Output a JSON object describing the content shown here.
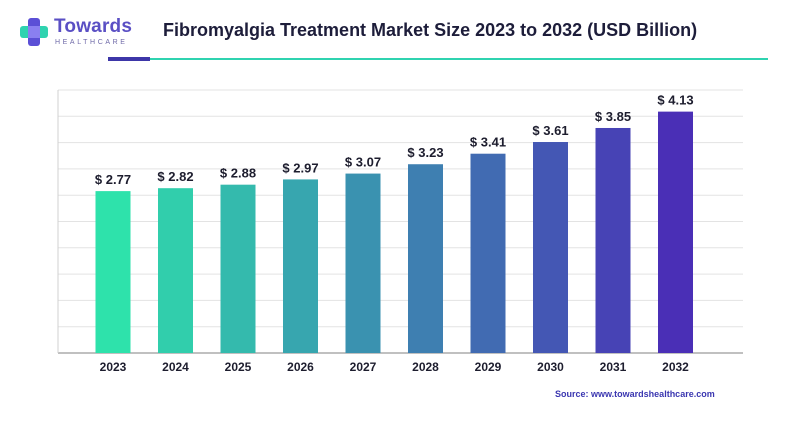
{
  "brand": {
    "name": "Towards",
    "tagline": "HEALTHCARE"
  },
  "header": {
    "title": "Fibromyalgia Treatment Market Size 2023 to 2032 (USD Billion)"
  },
  "source": "Source: www.towardshealthcare.com",
  "colors": {
    "bar_start": "#2ee2ab",
    "bar_end": "#4a2fb6",
    "accent": "#3d36a8",
    "rule": "#2fd3b0"
  },
  "chart_data": {
    "type": "bar",
    "title": "Fibromyalgia Treatment Market Size 2023 to 2032 (USD Billion)",
    "xlabel": "",
    "ylabel": "",
    "categories": [
      "2023",
      "2024",
      "2025",
      "2026",
      "2027",
      "2028",
      "2029",
      "2030",
      "2031",
      "2032"
    ],
    "values": [
      2.77,
      2.82,
      2.88,
      2.97,
      3.07,
      3.23,
      3.41,
      3.61,
      3.85,
      4.13
    ],
    "data_labels": [
      "$ 2.77",
      "$ 2.82",
      "$ 2.88",
      "$ 2.97",
      "$ 3.07",
      "$ 3.23",
      "$ 3.41",
      "$ 3.61",
      "$ 3.85",
      "$ 4.13"
    ],
    "ylim": [
      0.0,
      4.5
    ],
    "grid": true,
    "legend": "none"
  }
}
